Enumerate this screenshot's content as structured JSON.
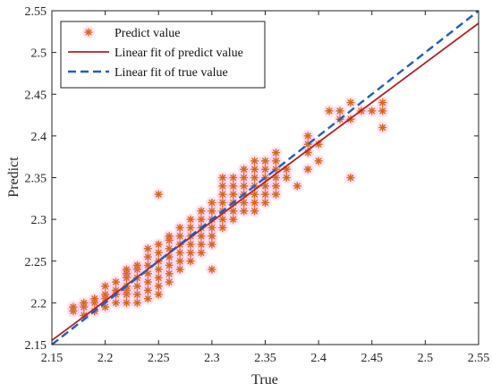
{
  "chart_data": {
    "type": "scatter",
    "title": "",
    "xlabel": "True",
    "ylabel": "Predict",
    "xlim": [
      2.15,
      2.55
    ],
    "ylim": [
      2.15,
      2.55
    ],
    "xticks": [
      "2.15",
      "2.2",
      "2.25",
      "2.3",
      "2.35",
      "2.4",
      "2.45",
      "2.5",
      "2.55"
    ],
    "yticks": [
      "2.15",
      "2.2",
      "2.25",
      "2.3",
      "2.35",
      "2.4",
      "2.45",
      "2.5",
      "2.55"
    ],
    "grid": false,
    "legend_position": "top-left",
    "series": [
      {
        "name": "Predict value",
        "kind": "scatter",
        "marker": "asterisk",
        "color": "#d4691e",
        "points": [
          [
            2.17,
            2.19
          ],
          [
            2.17,
            2.195
          ],
          [
            2.18,
            2.185
          ],
          [
            2.18,
            2.195
          ],
          [
            2.18,
            2.2
          ],
          [
            2.19,
            2.19
          ],
          [
            2.19,
            2.2
          ],
          [
            2.19,
            2.205
          ],
          [
            2.2,
            2.195
          ],
          [
            2.2,
            2.205
          ],
          [
            2.2,
            2.21
          ],
          [
            2.2,
            2.22
          ],
          [
            2.21,
            2.2
          ],
          [
            2.21,
            2.21
          ],
          [
            2.21,
            2.215
          ],
          [
            2.21,
            2.225
          ],
          [
            2.22,
            2.2
          ],
          [
            2.22,
            2.21
          ],
          [
            2.22,
            2.215
          ],
          [
            2.22,
            2.22
          ],
          [
            2.22,
            2.23
          ],
          [
            2.22,
            2.235
          ],
          [
            2.22,
            2.24
          ],
          [
            2.23,
            2.2
          ],
          [
            2.23,
            2.21
          ],
          [
            2.23,
            2.22
          ],
          [
            2.23,
            2.23
          ],
          [
            2.23,
            2.24
          ],
          [
            2.23,
            2.245
          ],
          [
            2.24,
            2.205
          ],
          [
            2.24,
            2.215
          ],
          [
            2.24,
            2.225
          ],
          [
            2.24,
            2.235
          ],
          [
            2.24,
            2.245
          ],
          [
            2.24,
            2.255
          ],
          [
            2.24,
            2.265
          ],
          [
            2.25,
            2.21
          ],
          [
            2.25,
            2.22
          ],
          [
            2.25,
            2.23
          ],
          [
            2.25,
            2.24
          ],
          [
            2.25,
            2.25
          ],
          [
            2.25,
            2.26
          ],
          [
            2.25,
            2.27
          ],
          [
            2.25,
            2.33
          ],
          [
            2.26,
            2.225
          ],
          [
            2.26,
            2.235
          ],
          [
            2.26,
            2.245
          ],
          [
            2.26,
            2.255
          ],
          [
            2.26,
            2.265
          ],
          [
            2.26,
            2.275
          ],
          [
            2.26,
            2.28
          ],
          [
            2.27,
            2.24
          ],
          [
            2.27,
            2.25
          ],
          [
            2.27,
            2.26
          ],
          [
            2.27,
            2.27
          ],
          [
            2.27,
            2.28
          ],
          [
            2.27,
            2.29
          ],
          [
            2.28,
            2.25
          ],
          [
            2.28,
            2.26
          ],
          [
            2.28,
            2.27
          ],
          [
            2.28,
            2.28
          ],
          [
            2.28,
            2.29
          ],
          [
            2.28,
            2.3
          ],
          [
            2.29,
            2.26
          ],
          [
            2.29,
            2.27
          ],
          [
            2.29,
            2.28
          ],
          [
            2.29,
            2.29
          ],
          [
            2.29,
            2.3
          ],
          [
            2.29,
            2.31
          ],
          [
            2.3,
            2.24
          ],
          [
            2.3,
            2.27
          ],
          [
            2.3,
            2.28
          ],
          [
            2.3,
            2.29
          ],
          [
            2.3,
            2.3
          ],
          [
            2.3,
            2.31
          ],
          [
            2.3,
            2.32
          ],
          [
            2.31,
            2.29
          ],
          [
            2.31,
            2.3
          ],
          [
            2.31,
            2.31
          ],
          [
            2.31,
            2.32
          ],
          [
            2.31,
            2.33
          ],
          [
            2.31,
            2.34
          ],
          [
            2.31,
            2.35
          ],
          [
            2.32,
            2.3
          ],
          [
            2.32,
            2.31
          ],
          [
            2.32,
            2.32
          ],
          [
            2.32,
            2.33
          ],
          [
            2.32,
            2.34
          ],
          [
            2.32,
            2.35
          ],
          [
            2.33,
            2.31
          ],
          [
            2.33,
            2.32
          ],
          [
            2.33,
            2.33
          ],
          [
            2.33,
            2.34
          ],
          [
            2.33,
            2.35
          ],
          [
            2.33,
            2.36
          ],
          [
            2.34,
            2.31
          ],
          [
            2.34,
            2.32
          ],
          [
            2.34,
            2.33
          ],
          [
            2.34,
            2.34
          ],
          [
            2.34,
            2.35
          ],
          [
            2.34,
            2.36
          ],
          [
            2.34,
            2.37
          ],
          [
            2.35,
            2.32
          ],
          [
            2.35,
            2.33
          ],
          [
            2.35,
            2.34
          ],
          [
            2.35,
            2.35
          ],
          [
            2.35,
            2.36
          ],
          [
            2.35,
            2.37
          ],
          [
            2.36,
            2.33
          ],
          [
            2.36,
            2.34
          ],
          [
            2.36,
            2.35
          ],
          [
            2.36,
            2.36
          ],
          [
            2.36,
            2.37
          ],
          [
            2.36,
            2.38
          ],
          [
            2.37,
            2.35
          ],
          [
            2.37,
            2.36
          ],
          [
            2.38,
            2.34
          ],
          [
            2.39,
            2.36
          ],
          [
            2.39,
            2.38
          ],
          [
            2.39,
            2.39
          ],
          [
            2.39,
            2.4
          ],
          [
            2.4,
            2.37
          ],
          [
            2.4,
            2.39
          ],
          [
            2.41,
            2.43
          ],
          [
            2.42,
            2.42
          ],
          [
            2.42,
            2.43
          ],
          [
            2.43,
            2.35
          ],
          [
            2.43,
            2.42
          ],
          [
            2.43,
            2.44
          ],
          [
            2.44,
            2.43
          ],
          [
            2.45,
            2.43
          ],
          [
            2.46,
            2.41
          ],
          [
            2.46,
            2.43
          ],
          [
            2.46,
            2.44
          ]
        ]
      },
      {
        "name": "Linear fit of predict value",
        "kind": "line",
        "style": "solid",
        "color": "#b22222",
        "x": [
          2.15,
          2.55
        ],
        "y": [
          2.155,
          2.535
        ]
      },
      {
        "name": "Linear fit of true value",
        "kind": "line",
        "style": "dashed",
        "color": "#1f5fbf",
        "x": [
          2.15,
          2.55
        ],
        "y": [
          2.15,
          2.55
        ]
      }
    ]
  }
}
